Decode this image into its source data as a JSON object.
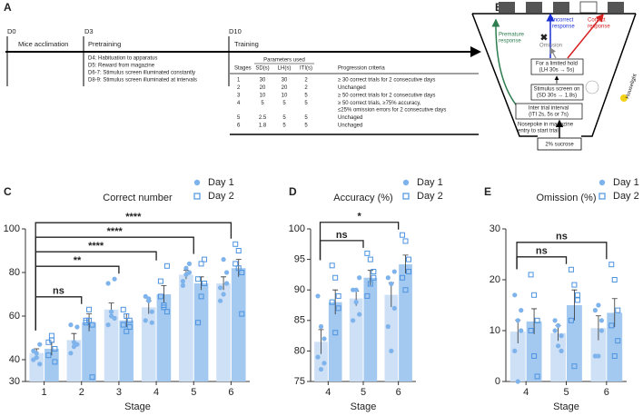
{
  "panel_a": {
    "label": "A",
    "timeline": [
      {
        "day": "D0",
        "phase": "Mice acclimation"
      },
      {
        "day": "D3",
        "phase": "Pretraining"
      },
      {
        "day": "D10",
        "phase": "Training"
      }
    ],
    "pretraining_steps": [
      "D4: Habituation to apparatus",
      "D5: Reward from magazine",
      "D6-7: Stimulus screen illuminated constantly",
      "D8-9: Stimulus screen illuminated at intervals"
    ],
    "table": {
      "group_header": "Parameters used",
      "columns": [
        "Stages",
        "SD(s)",
        "LH(s)",
        "ITI(s)",
        "Progression criteria"
      ],
      "rows": [
        {
          "cells": [
            "1",
            "30",
            "30",
            "2"
          ],
          "criteria": [
            "≥ 30 correct trials for 2 consecutive days"
          ]
        },
        {
          "cells": [
            "2",
            "20",
            "20",
            "2"
          ],
          "criteria": [
            "Unchanged"
          ]
        },
        {
          "cells": [
            "3",
            "10",
            "10",
            "5"
          ],
          "criteria": [
            "≥ 50 correct trials for 2 consecutive days"
          ]
        },
        {
          "cells": [
            "4",
            "5",
            "5",
            "5"
          ],
          "criteria": [
            "≥ 50 correct trials, ≥75% accuracy,",
            "≤25% omission errors for 2 consecutive days"
          ]
        },
        {
          "cells": [
            "5",
            "2.5",
            "5",
            "5"
          ],
          "criteria": [
            "Unchaged"
          ]
        },
        {
          "cells": [
            "6",
            "1.8",
            "5",
            "5"
          ],
          "criteria": [
            "Unchaged"
          ]
        }
      ]
    }
  },
  "panel_b": {
    "label": "B",
    "premature": [
      "Premature",
      "response"
    ],
    "incorrect": [
      "Incorrect",
      "response"
    ],
    "correct": [
      "Correct",
      "response"
    ],
    "omission": "Omission",
    "limited_hold": [
      "For a limited hold",
      "(LH 30s → 5s)"
    ],
    "stimulus": [
      "Stimulus screen on",
      "(SD 30s → 1.8s)"
    ],
    "iti": [
      "Inter trial interval",
      "(ITI 2s, 5s or 7s)"
    ],
    "nosepoke": [
      "Nosepoke in magazine",
      "entry to start trial"
    ],
    "reward": "2% sucrose",
    "houselight": "Houselight"
  },
  "chart_data": [
    {
      "type": "bar",
      "panel": "C",
      "title": "Correct number",
      "x_label": "Stage",
      "categories": [
        "1",
        "2",
        "3",
        "4",
        "5",
        "6"
      ],
      "ylim": [
        30,
        100
      ],
      "yticks": [
        30,
        40,
        60,
        80,
        100
      ],
      "legend": "top-right",
      "series": [
        {
          "name": "Day 1",
          "color": "#cde0f5",
          "marker": "circle",
          "marker_color": "#7fb3ec",
          "values": [
            43,
            49,
            63,
            64,
            79,
            75
          ],
          "errors": [
            2,
            3,
            3,
            3,
            2,
            3
          ],
          "points": [
            [
              40,
              43,
              47,
              44,
              41,
              38
            ],
            [
              43,
              48,
              55,
              56,
              46,
              47
            ],
            [
              56,
              60,
              77,
              75,
              62,
              59
            ],
            [
              58,
              68,
              62,
              69,
              67,
              57
            ],
            [
              76,
              82,
              84,
              74,
              79,
              80
            ],
            [
              67,
              70,
              80,
              73,
              86,
              75
            ]
          ]
        },
        {
          "name": "Day 2",
          "color": "#a3c9f0",
          "marker": "square",
          "marker_color": "#4d93e0",
          "values": [
            45,
            57,
            58,
            70,
            75,
            82
          ],
          "errors": [
            3,
            4,
            3,
            4,
            3,
            4
          ],
          "points": [
            [
              42,
              49,
              39,
              48,
              51,
              45
            ],
            [
              57,
              58,
              32,
              58,
              63,
              56
            ],
            [
              63,
              53,
              58,
              56,
              60,
              55
            ],
            [
              76,
              65,
              83,
              69,
              64,
              62
            ],
            [
              77,
              69,
              75,
              57,
              84,
              86
            ],
            [
              84,
              82,
              61,
              93,
              90,
              80
            ]
          ]
        }
      ],
      "significance": [
        {
          "between": [
            "1",
            "2"
          ],
          "label": "ns"
        },
        {
          "between": [
            "1",
            "3"
          ],
          "label": "**"
        },
        {
          "between": [
            "1",
            "4"
          ],
          "label": "****"
        },
        {
          "between": [
            "1",
            "5"
          ],
          "label": "****"
        },
        {
          "between": [
            "1",
            "6"
          ],
          "label": "****"
        }
      ]
    },
    {
      "type": "bar",
      "panel": "D",
      "title": "Accuracy (%)",
      "x_label": "Stage",
      "categories": [
        "4",
        "5",
        "6"
      ],
      "ylim": [
        75,
        100
      ],
      "yticks": [
        75,
        80,
        85,
        90,
        95,
        100
      ],
      "legend": "top-right",
      "series": [
        {
          "name": "Day 1",
          "color": "#cde0f5",
          "marker": "circle",
          "marker_color": "#7fb3ec",
          "values": [
            81.5,
            88.6,
            89.2
          ],
          "errors": [
            2,
            1.2,
            2
          ],
          "points": [
            [
              89,
              84,
              82,
              79,
              77,
              78
            ],
            [
              90,
              88,
              86,
              85,
              90,
              92
            ],
            [
              92,
              91,
              87,
              84,
              80,
              93
            ]
          ]
        },
        {
          "name": "Day 2",
          "color": "#a3c9f0",
          "marker": "square",
          "marker_color": "#4d93e0",
          "values": [
            88,
            92,
            94.2
          ],
          "errors": [
            2,
            1.2,
            1.5
          ],
          "points": [
            [
              94,
              92,
              89,
              88,
              83,
              87
            ],
            [
              96,
              95,
              92,
              89,
              91,
              93
            ],
            [
              99,
              98,
              93,
              92,
              90,
              95
            ]
          ]
        }
      ],
      "significance": [
        {
          "between": [
            "4",
            "5"
          ],
          "label": "ns"
        },
        {
          "between": [
            "4",
            "6"
          ],
          "label": "*"
        }
      ]
    },
    {
      "type": "bar",
      "panel": "E",
      "title": "Omission (%)",
      "x_label": "Stage",
      "categories": [
        "4",
        "5",
        "6"
      ],
      "ylim": [
        0,
        30
      ],
      "yticks": [
        0,
        10,
        20,
        30
      ],
      "legend": "top-right",
      "series": [
        {
          "name": "Day 1",
          "color": "#cde0f5",
          "marker": "circle",
          "marker_color": "#7fb3ec",
          "values": [
            9.8,
            9.5,
            10.5
          ],
          "errors": [
            2.3,
            1.5,
            2.4
          ],
          "points": [
            [
              17,
              12,
              10,
              6,
              0,
              14
            ],
            [
              12,
              11,
              9,
              10,
              7,
              6
            ],
            [
              14,
              15,
              10,
              5,
              5,
              12
            ]
          ]
        },
        {
          "name": "Day 2",
          "color": "#a3c9f0",
          "marker": "square",
          "marker_color": "#4d93e0",
          "values": [
            11.8,
            15,
            13.5
          ],
          "errors": [
            2.5,
            3,
            2.8
          ],
          "points": [
            [
              21,
              17,
              12,
              10,
              5,
              1
            ],
            [
              22,
              19,
              16,
              12,
              3,
              17
            ],
            [
              23,
              20,
              14,
              11,
              5,
              8
            ]
          ]
        }
      ],
      "significance": [
        {
          "between": [
            "4",
            "5"
          ],
          "label": "ns"
        },
        {
          "between": [
            "4",
            "6"
          ],
          "label": "ns"
        }
      ]
    }
  ]
}
